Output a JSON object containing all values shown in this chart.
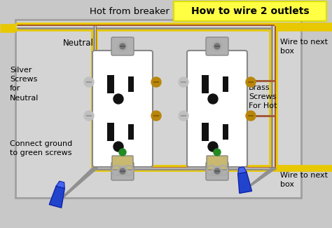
{
  "title": "How to wire 2 outlets",
  "background_color": "#c8c8c8",
  "title_bg": "#ffff44",
  "wire_hot_color": "#a0522d",
  "wire_neutral_color": "#e0e0e0",
  "wire_ground_color": "#909090",
  "wire_cable_color": "#e8c800",
  "wire_cable_dark": "#c8a800",
  "labels": {
    "hot_from_breaker": "Hot from breaker",
    "neutral": "Neutral",
    "silver_screws": "Silver\nScrews\nfor\nNeutral",
    "brass_screws": "Brass\nScrews\nFor Hot",
    "connect_ground": "Connect ground\nto green screws",
    "wire_to_next1": "Wire to next\nbox",
    "wire_to_next2": "Wire to next\nbox"
  }
}
